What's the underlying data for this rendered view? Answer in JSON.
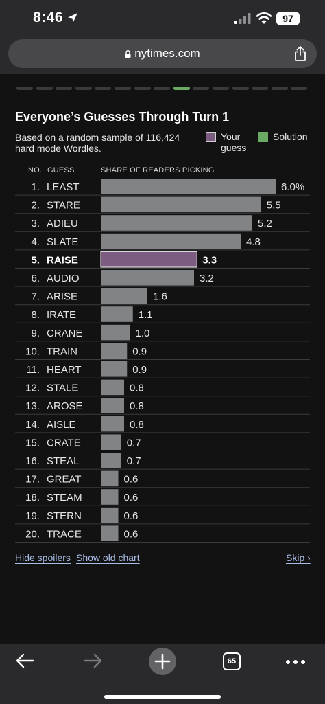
{
  "status_bar": {
    "time": "8:46",
    "battery": "97",
    "icons": [
      "location-arrow-icon",
      "cellular-signal-icon",
      "wifi-icon",
      "battery-icon"
    ]
  },
  "browser": {
    "url": "nytimes.com",
    "tab_count": "65"
  },
  "page": {
    "progress_segments": 15,
    "progress_active_index": 8,
    "title": "Everyone’s Guesses Through Turn 1",
    "subtitle": "Based on a random sample of 116,424 hard mode Wordles.",
    "legend": {
      "your_guess": "Your guess",
      "solution": "Solution"
    },
    "column_headers": {
      "no": "NO.",
      "guess": "GUESS",
      "share": "SHARE OF READERS PICKING"
    },
    "links": {
      "hide_spoilers": "Hide spoilers",
      "show_old_chart": "Show old chart",
      "skip": "Skip ›"
    }
  },
  "colors": {
    "bar": "#818384",
    "your_guess": "#7d5c82",
    "solution": "#6aaa64",
    "background": "#121213"
  },
  "chart_data": {
    "type": "bar",
    "orientation": "horizontal",
    "x_unit": "%",
    "highlight_index": 4,
    "rows": [
      {
        "rank": "1.",
        "guess": "LEAST",
        "value": 6.0,
        "label": "6.0%"
      },
      {
        "rank": "2.",
        "guess": "STARE",
        "value": 5.5,
        "label": "5.5"
      },
      {
        "rank": "3.",
        "guess": "ADIEU",
        "value": 5.2,
        "label": "5.2"
      },
      {
        "rank": "4.",
        "guess": "SLATE",
        "value": 4.8,
        "label": "4.8"
      },
      {
        "rank": "5.",
        "guess": "RAISE",
        "value": 3.3,
        "label": "3.3"
      },
      {
        "rank": "6.",
        "guess": "AUDIO",
        "value": 3.2,
        "label": "3.2"
      },
      {
        "rank": "7.",
        "guess": "ARISE",
        "value": 1.6,
        "label": "1.6"
      },
      {
        "rank": "8.",
        "guess": "IRATE",
        "value": 1.1,
        "label": "1.1"
      },
      {
        "rank": "9.",
        "guess": "CRANE",
        "value": 1.0,
        "label": "1.0"
      },
      {
        "rank": "10.",
        "guess": "TRAIN",
        "value": 0.9,
        "label": "0.9"
      },
      {
        "rank": "11.",
        "guess": "HEART",
        "value": 0.9,
        "label": "0.9"
      },
      {
        "rank": "12.",
        "guess": "STALE",
        "value": 0.8,
        "label": "0.8"
      },
      {
        "rank": "13.",
        "guess": "AROSE",
        "value": 0.8,
        "label": "0.8"
      },
      {
        "rank": "14.",
        "guess": "AISLE",
        "value": 0.8,
        "label": "0.8"
      },
      {
        "rank": "15.",
        "guess": "CRATE",
        "value": 0.7,
        "label": "0.7"
      },
      {
        "rank": "16.",
        "guess": "STEAL",
        "value": 0.7,
        "label": "0.7"
      },
      {
        "rank": "17.",
        "guess": "GREAT",
        "value": 0.6,
        "label": "0.6"
      },
      {
        "rank": "18.",
        "guess": "STEAM",
        "value": 0.6,
        "label": "0.6"
      },
      {
        "rank": "19.",
        "guess": "STERN",
        "value": 0.6,
        "label": "0.6"
      },
      {
        "rank": "20.",
        "guess": "TRACE",
        "value": 0.6,
        "label": "0.6"
      }
    ]
  }
}
